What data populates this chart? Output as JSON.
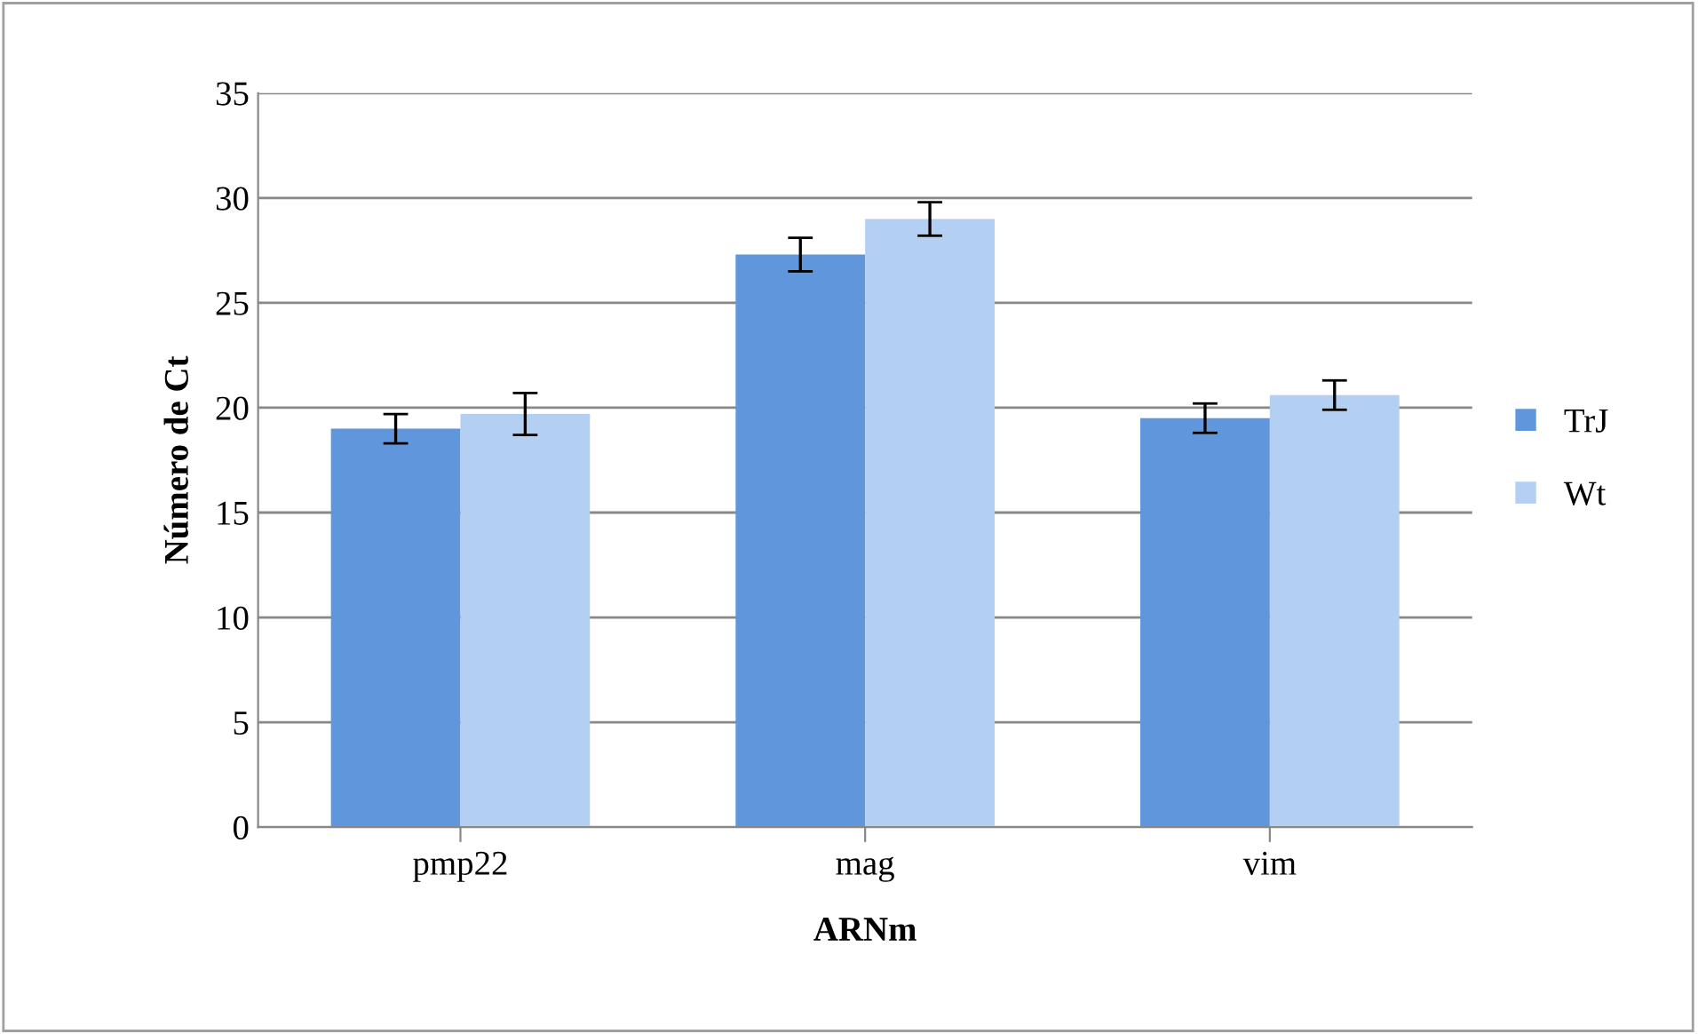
{
  "chart_data": {
    "type": "bar",
    "xlabel": "ARNm",
    "ylabel": "Número de Ct",
    "categories": [
      "pmp22",
      "mag",
      "vim"
    ],
    "series": [
      {
        "name": "TrJ",
        "color": "#5f96dc",
        "values": [
          19.0,
          27.3,
          19.5
        ],
        "errors": [
          0.7,
          0.8,
          0.7
        ]
      },
      {
        "name": "Wt",
        "color": "#b3cff2",
        "values": [
          19.7,
          29.0,
          20.6
        ],
        "errors": [
          1.0,
          0.8,
          0.7
        ]
      }
    ],
    "ylim": [
      0,
      35
    ],
    "yticks": [
      0,
      5,
      10,
      15,
      20,
      25,
      30,
      35
    ],
    "grid": "y",
    "legend": "right"
  }
}
